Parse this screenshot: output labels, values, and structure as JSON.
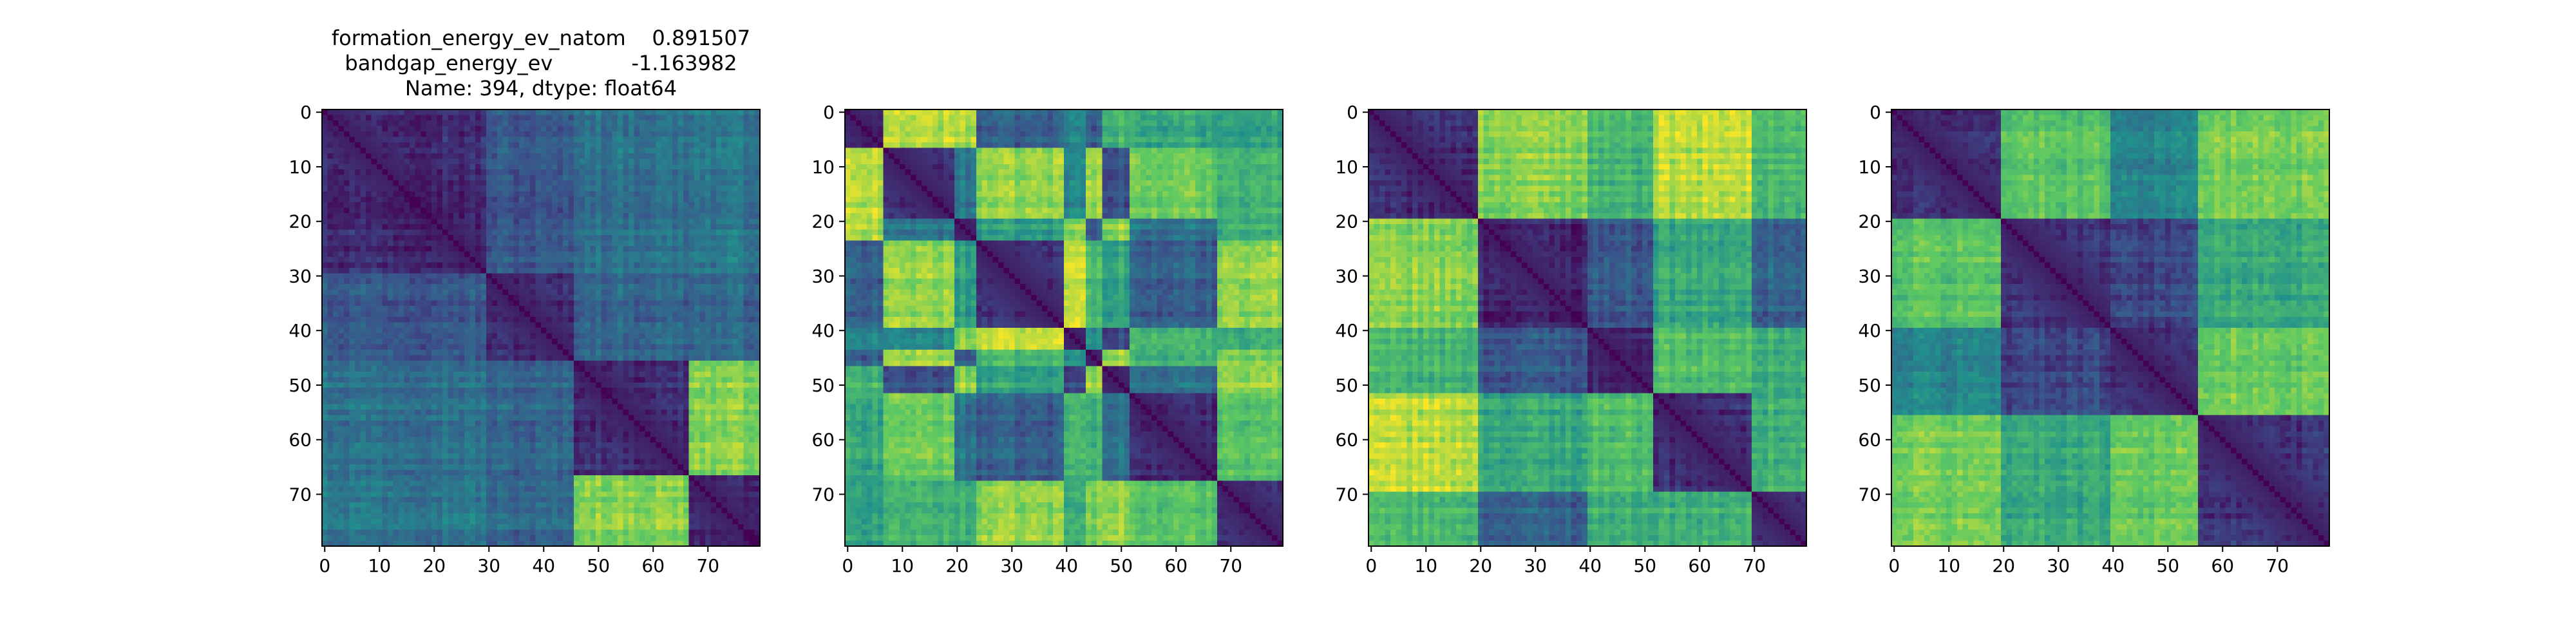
{
  "title": {
    "line1": "formation_energy_ev_natom    0.891507",
    "line2": "bandgap_energy_ev            -1.163982",
    "line3": "Name: 394, dtype: float64"
  },
  "colormap": [
    "#440154",
    "#3b528b",
    "#21918c",
    "#5ec962",
    "#fde725"
  ],
  "chart_data": [
    {
      "type": "heatmap",
      "size": 80,
      "xticks": [
        0,
        10,
        20,
        30,
        40,
        50,
        60,
        70
      ],
      "yticks": [
        0,
        10,
        20,
        30,
        40,
        50,
        60,
        70
      ],
      "xlim": [
        0,
        80
      ],
      "ylim": [
        80,
        0
      ],
      "blocks": [
        0,
        30,
        46,
        67,
        80
      ]
    },
    {
      "type": "heatmap",
      "size": 80,
      "xticks": [
        0,
        10,
        20,
        30,
        40,
        50,
        60,
        70
      ],
      "yticks": [
        0,
        10,
        20,
        30,
        40,
        50,
        60,
        70
      ],
      "xlim": [
        0,
        80
      ],
      "ylim": [
        80,
        0
      ],
      "blocks": [
        0,
        7,
        20,
        24,
        40,
        44,
        47,
        52,
        68,
        80
      ]
    },
    {
      "type": "heatmap",
      "size": 80,
      "xticks": [
        0,
        10,
        20,
        30,
        40,
        50,
        60,
        70
      ],
      "yticks": [
        0,
        10,
        20,
        30,
        40,
        50,
        60,
        70
      ],
      "xlim": [
        0,
        80
      ],
      "ylim": [
        80,
        0
      ],
      "blocks": [
        0,
        20,
        40,
        52,
        70,
        80
      ]
    },
    {
      "type": "heatmap",
      "size": 80,
      "xticks": [
        0,
        10,
        20,
        30,
        40,
        50,
        60,
        70
      ],
      "yticks": [
        0,
        10,
        20,
        30,
        40,
        50,
        60,
        70
      ],
      "xlim": [
        0,
        80
      ],
      "ylim": [
        80,
        0
      ],
      "blocks": [
        0,
        20,
        40,
        56,
        80
      ]
    }
  ]
}
